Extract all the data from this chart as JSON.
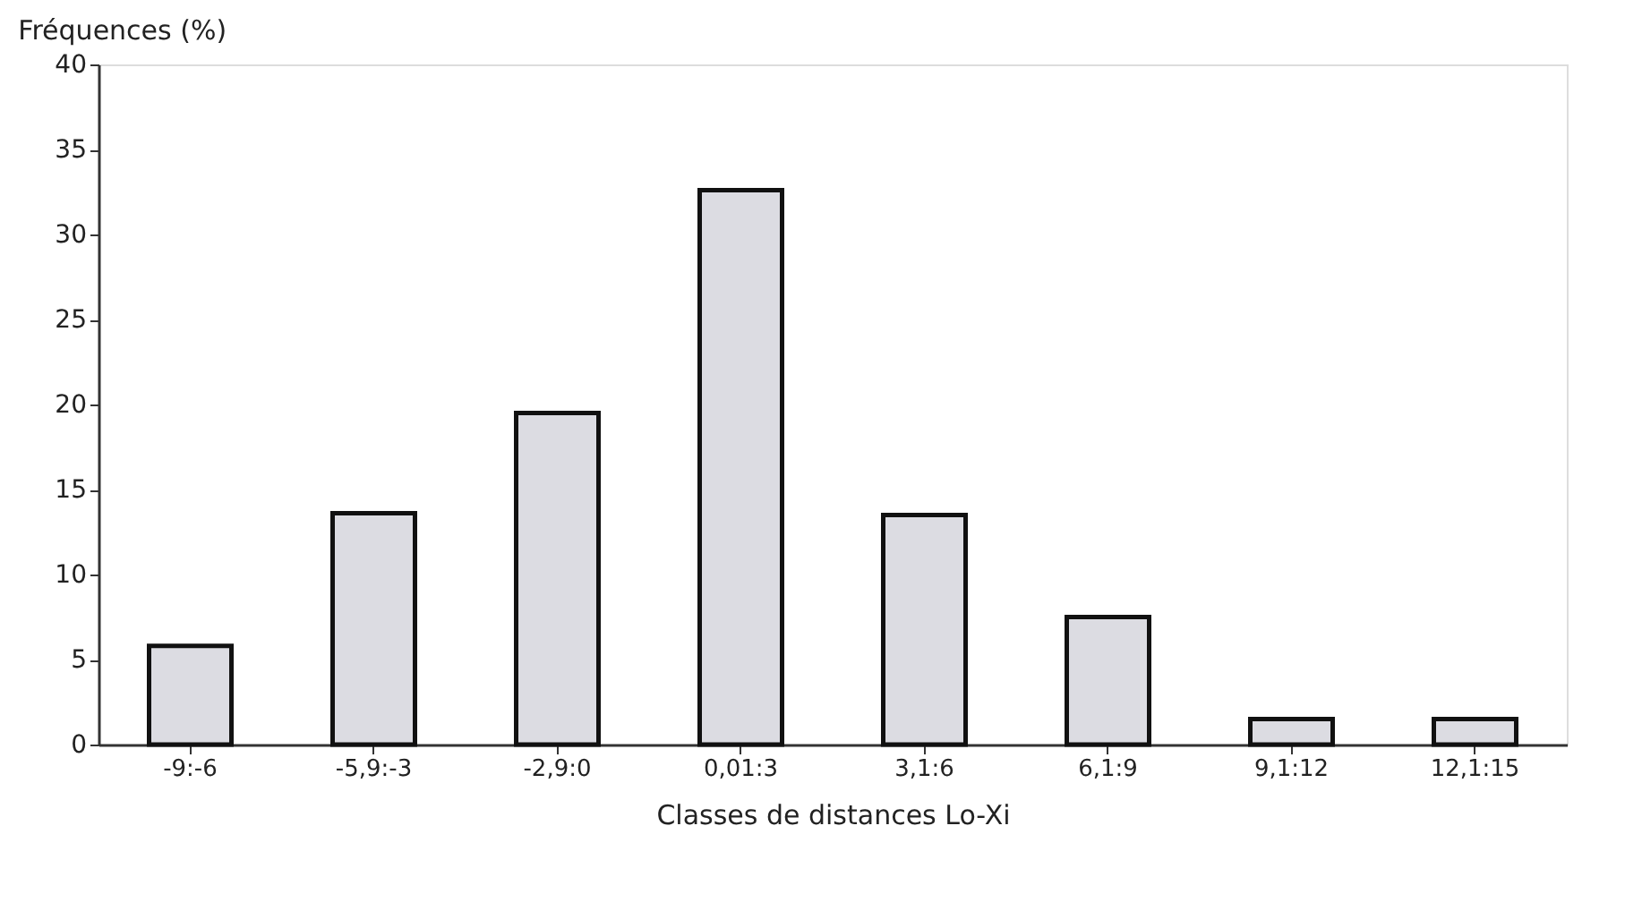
{
  "chart_data": {
    "type": "bar",
    "ylabel": "Fréquences (%)",
    "xlabel": "Classes de distances Lo-Xi",
    "categories": [
      "-9:-6",
      "-5,9:-3",
      "-2,9:0",
      "0,01:3",
      "3,1:6",
      "6,1:9",
      "9,1:12",
      "12,1:15"
    ],
    "values": [
      5.8,
      13.6,
      19.5,
      32.6,
      13.5,
      7.5,
      1.5,
      1.5
    ],
    "color": "#dcdce2",
    "ylim": [
      0,
      40
    ],
    "yticks": [
      0,
      5,
      10,
      15,
      20,
      25,
      30,
      35,
      40
    ],
    "grid": false
  }
}
